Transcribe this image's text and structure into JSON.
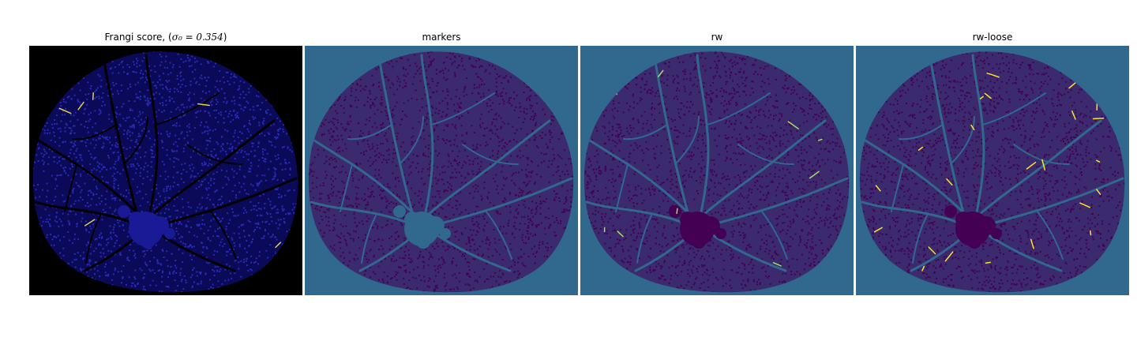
{
  "panels": [
    {
      "title_prefix": "Frangi score, (",
      "title_math": "σ₀ = 0.354",
      "title_suffix": ")",
      "background": "#000000",
      "disk_color": "#0a0a58",
      "texture_color": "#2a2ab8",
      "vessel_color": "#000000",
      "highlight_color": "#e0d050",
      "blob_color": "#1a1a96",
      "highlight_count": 6
    },
    {
      "title": "markers",
      "background": "#31688e",
      "disk_color": "#3b2a6e",
      "texture_color": "#440154",
      "vessel_color": "#31688e",
      "highlight_color": "#31688e",
      "blob_color": "#31688e",
      "highlight_count": 0
    },
    {
      "title": "rw",
      "background": "#31688e",
      "disk_color": "#3b2a6e",
      "texture_color": "#440154",
      "vessel_color": "#31688e",
      "highlight_color": "#a8e060",
      "blob_color": "#440154",
      "highlight_count": 10
    },
    {
      "title": "rw-loose",
      "background": "#31688e",
      "disk_color": "#3b2a6e",
      "texture_color": "#440154",
      "vessel_color": "#31688e",
      "highlight_color": "#fde725",
      "blob_color": "#440154",
      "highlight_count": 24
    }
  ]
}
